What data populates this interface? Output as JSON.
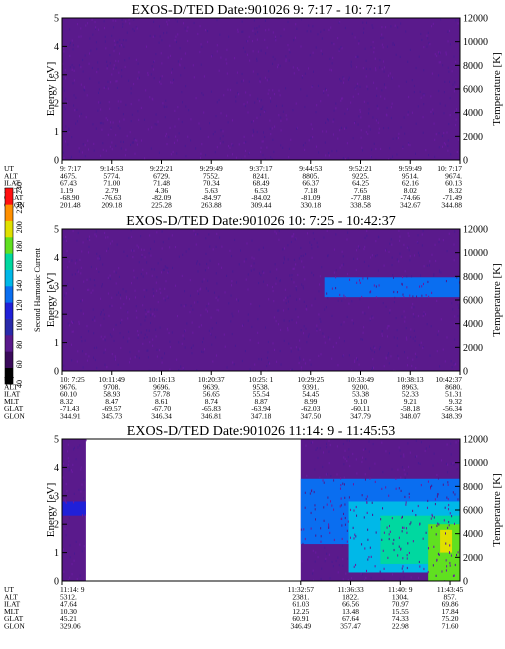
{
  "chart_data": [
    {
      "type": "heatmap",
      "title": "EXOS-D/TED   Date:901026  9: 7:17 - 10: 7:17",
      "ylabel": "Energy [eV]",
      "ylabel_right": "Temperature [K]",
      "ylim": [
        0,
        5
      ],
      "ylim_right": [
        0,
        12000
      ],
      "yticks": [
        "0",
        "1",
        "2",
        "3",
        "4",
        "5"
      ],
      "yticks_right": [
        "0",
        "2000",
        "4000",
        "6000",
        "8000",
        "10000",
        "12000"
      ],
      "data_x_range": [
        0,
        1
      ],
      "background_level": 0.22,
      "bands": [],
      "orbit_table": {
        "row_labels": [
          "UT",
          "ALT",
          "ILAT",
          "MLT",
          "GLAT",
          "GLON"
        ],
        "columns": [
          {
            "x": 0.0,
            "values": [
              "9: 7:17",
              "4675.",
              "67.43",
              "1.19",
              "-68.90",
              "201.48"
            ]
          },
          {
            "x": 0.125,
            "values": [
              "9:14:53",
              "5774.",
              "71.00",
              "2.79",
              "-76.63",
              "209.18"
            ]
          },
          {
            "x": 0.25,
            "values": [
              "9:22:21",
              "6729.",
              "71.48",
              "4.36",
              "-82.09",
              "225.28"
            ]
          },
          {
            "x": 0.375,
            "values": [
              "9:29:49",
              "7552.",
              "70.34",
              "5.63",
              "-84.97",
              "263.88"
            ]
          },
          {
            "x": 0.5,
            "values": [
              "9:37:17",
              "8241.",
              "68.49",
              "6.53",
              "-84.02",
              "309.44"
            ]
          },
          {
            "x": 0.625,
            "values": [
              "9:44:53",
              "8805.",
              "66.37",
              "7.18",
              "-81.09",
              "330.18"
            ]
          },
          {
            "x": 0.75,
            "values": [
              "9:52:21",
              "9225.",
              "64.25",
              "7.65",
              "-77.88",
              "338.58"
            ]
          },
          {
            "x": 0.875,
            "values": [
              "9:59:49",
              "9514.",
              "62.16",
              "8.02",
              "-74.66",
              "342.67"
            ]
          },
          {
            "x": 1.0,
            "values": [
              "10: 7:17",
              "9674.",
              "60.13",
              "8.32",
              "-71.49",
              "344.88"
            ]
          }
        ]
      }
    },
    {
      "type": "heatmap",
      "title": "EXOS-D/TED   Date:901026  10: 7:25 - 10:42:37",
      "ylabel": "Energy [eV]",
      "ylabel_right": "Temperature [K]",
      "ylim": [
        0,
        5
      ],
      "ylim_right": [
        0,
        12000
      ],
      "yticks": [
        "0",
        "1",
        "2",
        "3",
        "4",
        "5"
      ],
      "yticks_right": [
        "0",
        "2000",
        "4000",
        "6000",
        "8000",
        "10000",
        "12000"
      ],
      "data_x_range": [
        0,
        1
      ],
      "background_level": 0.22,
      "bands": [
        {
          "x0": 0.66,
          "x1": 1.0,
          "y0": 2.6,
          "y1": 3.3,
          "level": 0.42
        }
      ],
      "orbit_table": {
        "row_labels": [
          "UT",
          "ALT",
          "ILAT",
          "MLT",
          "GLAT",
          "GLON"
        ],
        "columns": [
          {
            "x": 0.0,
            "values": [
              "10: 7:25",
              "9676.",
              "60.10",
              "8.32",
              "-71.43",
              "344.91"
            ]
          },
          {
            "x": 0.125,
            "values": [
              "10:11:49",
              "9708.",
              "58.93",
              "8.47",
              "-69.57",
              "345.73"
            ]
          },
          {
            "x": 0.25,
            "values": [
              "10:16:13",
              "9696.",
              "57.78",
              "8.61",
              "-67.70",
              "346.34"
            ]
          },
          {
            "x": 0.375,
            "values": [
              "10:20:37",
              "9639.",
              "56.65",
              "8.74",
              "-65.83",
              "346.81"
            ]
          },
          {
            "x": 0.5,
            "values": [
              "10:25: 1",
              "9538.",
              "55.54",
              "8.87",
              "-63.94",
              "347.18"
            ]
          },
          {
            "x": 0.625,
            "values": [
              "10:29:25",
              "9391.",
              "54.45",
              "8.99",
              "-62.03",
              "347.50"
            ]
          },
          {
            "x": 0.75,
            "values": [
              "10:33:49",
              "9200.",
              "53.38",
              "9.10",
              "-60.11",
              "347.79"
            ]
          },
          {
            "x": 0.875,
            "values": [
              "10:38:13",
              "8963.",
              "52.33",
              "9.21",
              "-58.18",
              "348.07"
            ]
          },
          {
            "x": 1.0,
            "values": [
              "10:42:37",
              "8680.",
              "51.31",
              "9.32",
              "-56.34",
              "348.39"
            ]
          }
        ]
      }
    },
    {
      "type": "heatmap",
      "title": "EXOS-D/TED   Date:901026  11:14: 9 - 11:45:53",
      "ylabel": "Energy [eV]",
      "ylabel_right": "Temperature [K]",
      "ylim": [
        0,
        5
      ],
      "ylim_right": [
        0,
        12000
      ],
      "yticks": [
        "0",
        "1",
        "2",
        "3",
        "4",
        "5"
      ],
      "yticks_right": [
        "0",
        "2000",
        "4000",
        "6000",
        "8000",
        "10000",
        "12000"
      ],
      "data_x_ranges": [
        [
          0,
          0.06
        ],
        [
          0.6,
          1
        ]
      ],
      "background_level": 0.22,
      "bands": [
        {
          "x0": 0.0,
          "x1": 0.06,
          "y0": 2.3,
          "y1": 2.8,
          "level": 0.4
        },
        {
          "x0": 0.6,
          "x1": 1.0,
          "y0": 1.3,
          "y1": 3.6,
          "level": 0.42
        },
        {
          "x0": 0.72,
          "x1": 1.0,
          "y0": 0.3,
          "y1": 2.8,
          "level": 0.58
        },
        {
          "x0": 0.8,
          "x1": 1.0,
          "y0": 0.6,
          "y1": 2.3,
          "level": 0.66
        },
        {
          "x0": 0.92,
          "x1": 1.0,
          "y0": 0.0,
          "y1": 2.0,
          "level": 0.75
        },
        {
          "x0": 0.95,
          "x1": 0.98,
          "y0": 1.0,
          "y1": 1.8,
          "level": 0.85
        }
      ],
      "orbit_table": {
        "row_labels": [
          "UT",
          "ALT",
          "ILAT",
          "MLT",
          "GLAT",
          "GLON"
        ],
        "columns": [
          {
            "x": 0.0,
            "values": [
              "11:14: 9",
              "5312.",
              "47.64",
              "10.30",
              "45.21",
              "329.06"
            ]
          },
          {
            "x": 0.6,
            "values": [
              "11:32:57",
              "2381.",
              "61.03",
              "12.25",
              "60.91",
              "346.49"
            ]
          },
          {
            "x": 0.725,
            "values": [
              "11:36:33",
              "1822.",
              "66.56",
              "13.48",
              "67.64",
              "357.47"
            ]
          },
          {
            "x": 0.85,
            "values": [
              "11:40: 9",
              "1304.",
              "70.97",
              "15.55",
              "74.33",
              "22.98"
            ]
          },
          {
            "x": 0.975,
            "values": [
              "11:43:45",
              "857.",
              "69.86",
              "17.84",
              "75.20",
              "71.60"
            ]
          }
        ]
      }
    }
  ],
  "colorbar": {
    "label": "Second Harmonic Current",
    "ticks": [
      "40",
      "60",
      "80",
      "100",
      "120",
      "140",
      "160",
      "180",
      "200",
      "220",
      "240"
    ],
    "colors": [
      "#000000",
      "#3a0a5a",
      "#5a1a8c",
      "#2a2aaa",
      "#2020d8",
      "#0a6ef0",
      "#00b8e8",
      "#00d8a0",
      "#60e020",
      "#e0e000",
      "#ff9000",
      "#ff1010"
    ]
  }
}
